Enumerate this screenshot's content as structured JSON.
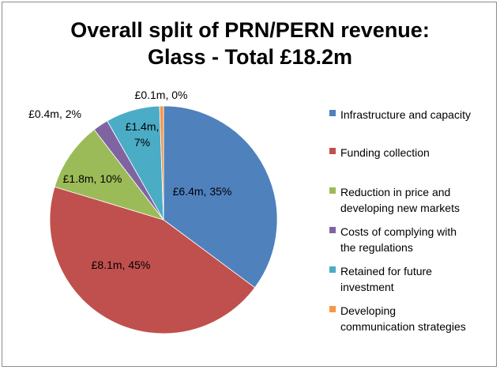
{
  "chart_data": {
    "type": "pie",
    "title": [
      "Overall split of PRN/PERN revenue:",
      "Glass - Total £18.2m"
    ],
    "slices": [
      {
        "name": "Infrastructure and capacity",
        "value": 6.4,
        "percent": 35,
        "label_lines": [
          "£6.4m, 35%"
        ],
        "color": "#4F81BD"
      },
      {
        "name": "Funding collection",
        "value": 8.1,
        "percent": 45,
        "label_lines": [
          "£8.1m, 45%"
        ],
        "color": "#C0504D"
      },
      {
        "name": "Reduction in price and developing new markets",
        "value": 1.8,
        "percent": 10,
        "label_lines": [
          "£1.8m, 10%"
        ],
        "color": "#9BBB59"
      },
      {
        "name": "Costs of complying with the regulations",
        "value": 0.4,
        "percent": 2,
        "label_lines": [
          "£0.4m, 2%"
        ],
        "color": "#8064A2"
      },
      {
        "name": "Retained for future investment",
        "value": 1.4,
        "percent": 7,
        "label_lines": [
          "£1.4m,",
          "7%"
        ],
        "color": "#4BACC6"
      },
      {
        "name": "Developing communication strategies",
        "value": 0.1,
        "percent": 0,
        "label_lines": [
          "£0.1m, 0%"
        ],
        "color": "#F79646"
      }
    ],
    "legend": {
      "position": "right",
      "items": [
        [
          "Infrastructure and capacity"
        ],
        [
          "Funding collection"
        ],
        [
          "Reduction in price and",
          "developing new markets"
        ],
        [
          "Costs of complying with",
          "the regulations"
        ],
        [
          "Retained for future",
          "investment"
        ],
        [
          "Developing",
          "communication strategies"
        ]
      ]
    }
  }
}
